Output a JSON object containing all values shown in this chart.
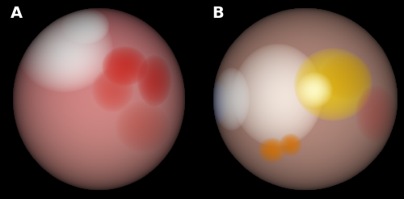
{
  "figure_width": 5.0,
  "figure_height": 2.46,
  "dpi": 100,
  "background_color": "#000000",
  "label_A": "A",
  "label_B": "B",
  "label_color": "#ffffff",
  "label_fontsize": 14,
  "label_fontweight": "bold"
}
